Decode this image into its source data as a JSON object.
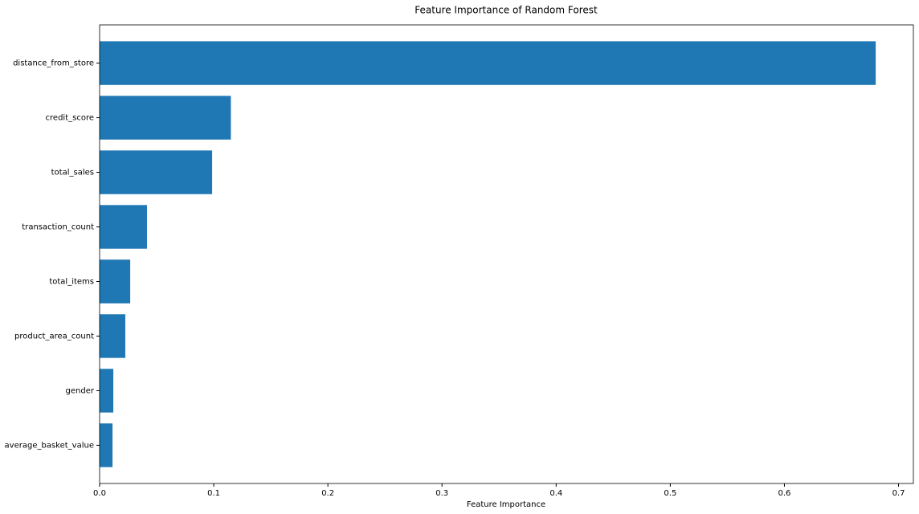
{
  "chart_data": {
    "type": "barh",
    "title": "Feature Importance of Random Forest",
    "x_label": "Feature Importance",
    "categories": [
      "distance_from_store",
      "credit_score",
      "total_sales",
      "transaction_count",
      "total_items",
      "product_area_count",
      "gender",
      "average_basket_value"
    ],
    "values": [
      0.68,
      0.115,
      0.0986,
      0.0415,
      0.0268,
      0.0225,
      0.012,
      0.0113
    ],
    "color": "#1f77b4",
    "xlim": [
      0,
      0.713
    ],
    "xticks": [
      {
        "value": 0,
        "label": "0.0"
      },
      {
        "value": 0.1,
        "label": "0.1"
      },
      {
        "value": 0.2,
        "label": "0.2"
      },
      {
        "value": 0.3,
        "label": "0.3"
      },
      {
        "value": 0.4,
        "label": "0.4"
      },
      {
        "value": 0.5,
        "label": "0.5"
      },
      {
        "value": 0.6,
        "label": "0.6"
      },
      {
        "value": 0.7,
        "label": "0.7"
      }
    ],
    "grid": false
  }
}
